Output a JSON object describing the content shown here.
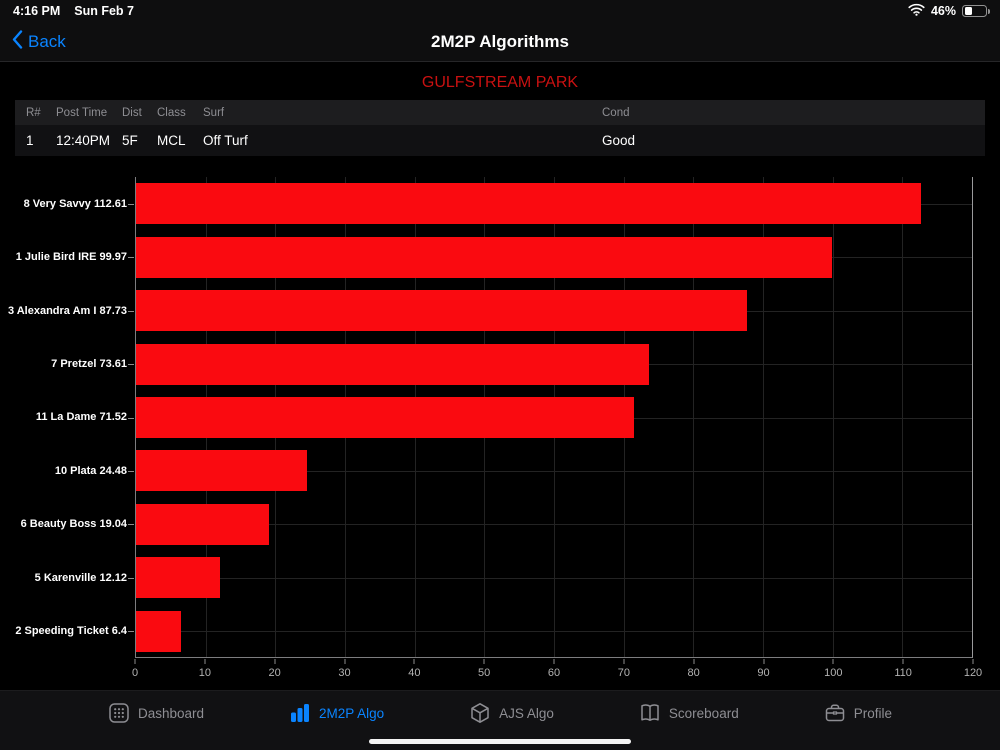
{
  "status_bar": {
    "time": "4:16 PM",
    "date": "Sun Feb 7",
    "battery_label": "46%",
    "battery_level": 46
  },
  "nav": {
    "back_label": "Back",
    "title": "2M2P Algorithms"
  },
  "track": {
    "name": "GULFSTREAM PARK",
    "color": "#c91111"
  },
  "race_table": {
    "headers": [
      "R#",
      "Post Time",
      "Dist",
      "Class",
      "Surf",
      "Cond"
    ],
    "row": [
      "1",
      "12:40PM",
      "5F",
      "MCL",
      "Off Turf",
      "Good"
    ]
  },
  "chart_data": {
    "type": "bar",
    "orientation": "horizontal",
    "categories": [
      "8 Very Savvy 112.61",
      "1 Julie Bird IRE 99.97",
      "3 Alexandra Am I 87.73",
      "7 Pretzel 73.61",
      "11 La Dame 71.52",
      "10 Plata 24.48",
      "6 Beauty Boss 19.04",
      "5 Karenville 12.12",
      "2 Speeding Ticket 6.4"
    ],
    "values": [
      112.61,
      99.97,
      87.73,
      73.61,
      71.52,
      24.48,
      19.04,
      12.12,
      6.4
    ],
    "bar_color": "#fa0a10",
    "xlim": [
      0,
      120
    ],
    "x_ticks": [
      0,
      10,
      20,
      30,
      40,
      50,
      60,
      70,
      80,
      90,
      100,
      110,
      120
    ],
    "grid": true,
    "background": "#000000",
    "legend": "none",
    "title": ""
  },
  "tab_bar": {
    "active_color": "#0a84ff",
    "inactive_color": "#8e8e93",
    "items": [
      {
        "label": "Dashboard",
        "icon": "keypad-icon",
        "active": false
      },
      {
        "label": "2M2P Algo",
        "icon": "bar-chart-icon",
        "active": true
      },
      {
        "label": "AJS Algo",
        "icon": "cube-icon",
        "active": false
      },
      {
        "label": "Scoreboard",
        "icon": "book-icon",
        "active": false
      },
      {
        "label": "Profile",
        "icon": "briefcase-icon",
        "active": false
      }
    ]
  }
}
